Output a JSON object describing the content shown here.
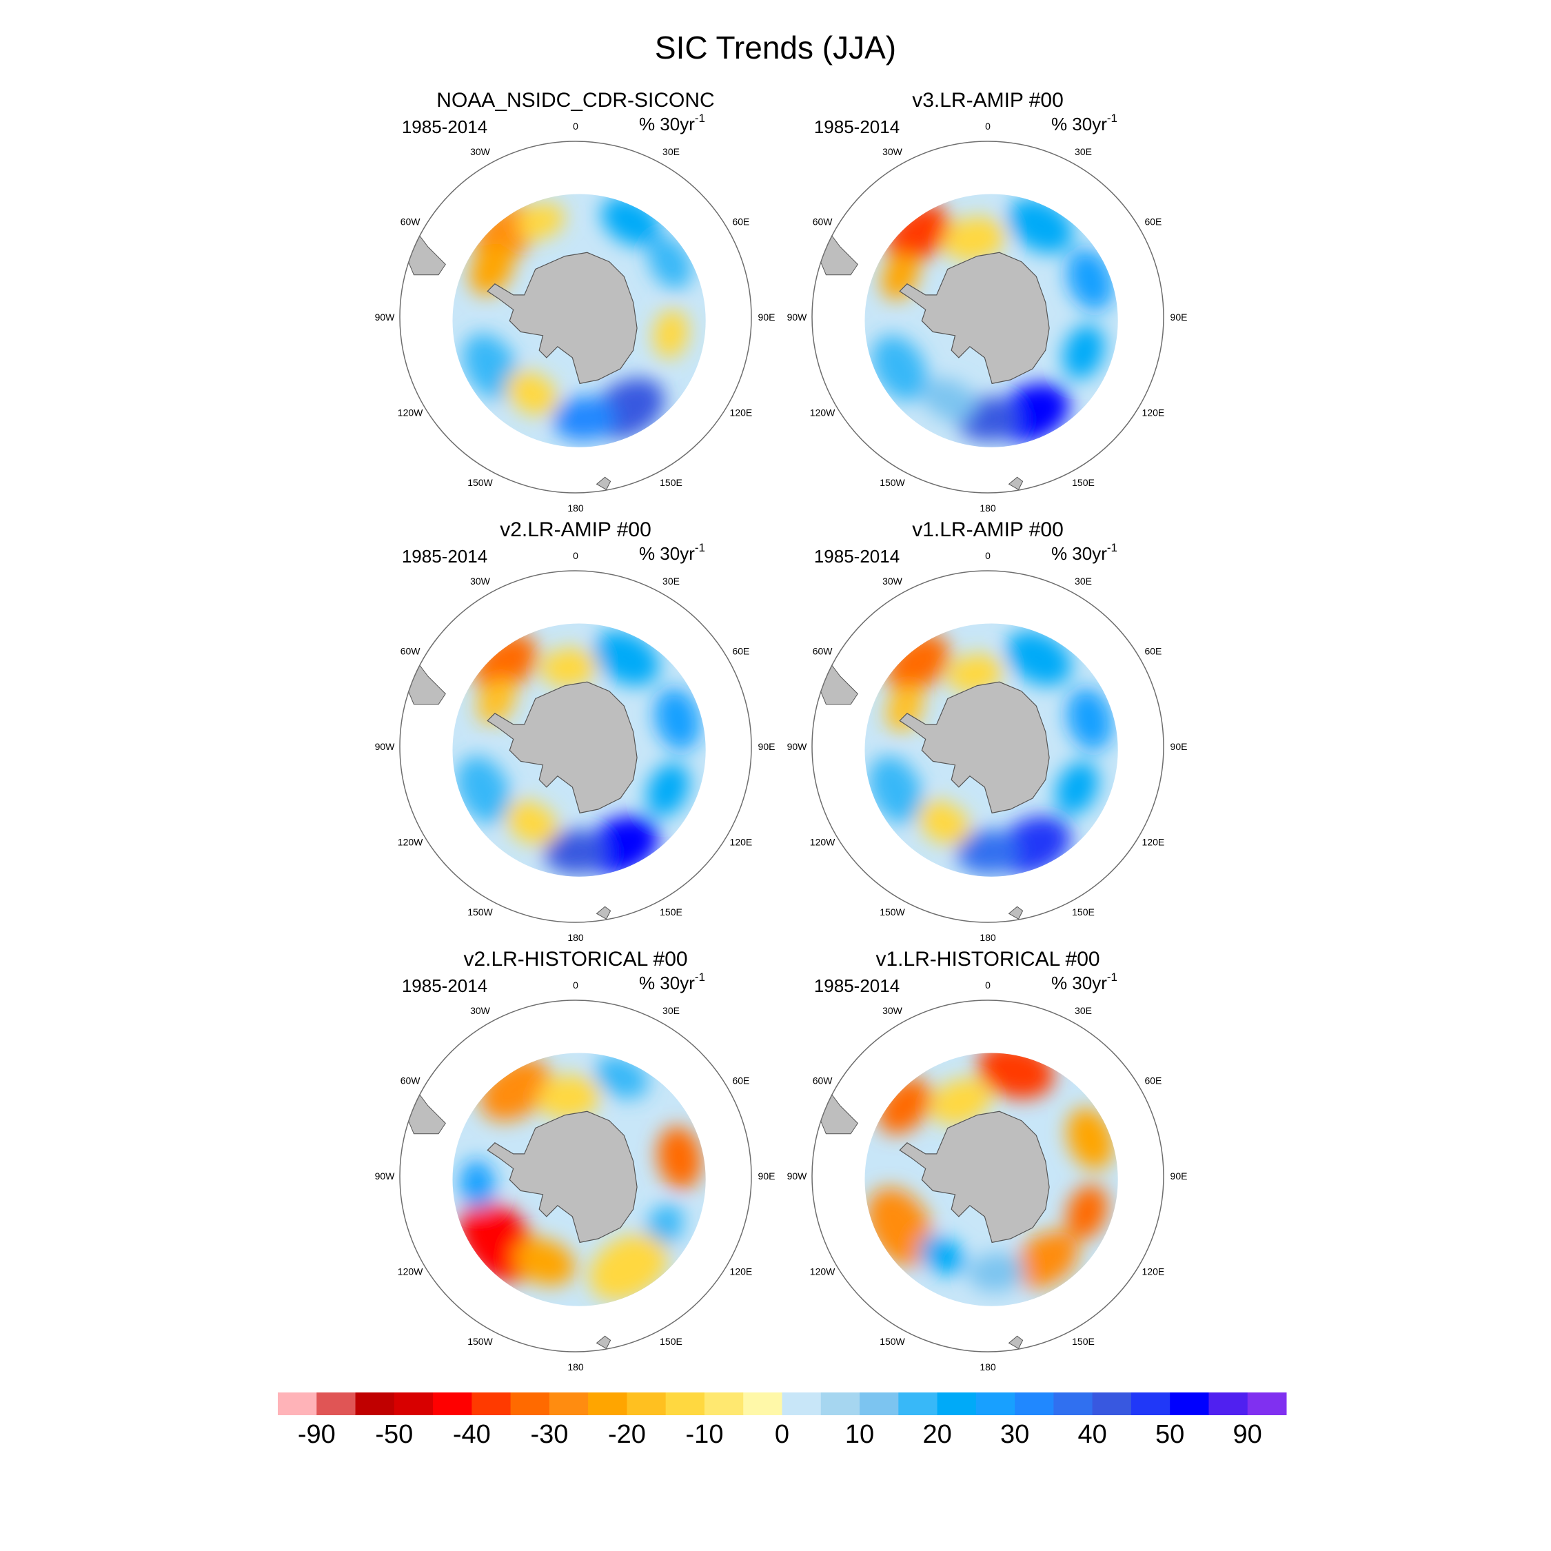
{
  "figure": {
    "title": "SIC Trends (JJA)",
    "season": "JJA"
  },
  "panels": [
    {
      "model": "NOAA_NSIDC_CDR-SICONC",
      "period": "1985-2014",
      "units_prefix": "% 30yr",
      "units_exp": "-1",
      "blobs": [
        {
          "angle": -40,
          "radius": 0.62,
          "size": 0.2,
          "level": -25
        },
        {
          "angle": -60,
          "radius": 0.55,
          "size": 0.16,
          "level": -20
        },
        {
          "angle": -20,
          "radius": 0.58,
          "size": 0.14,
          "level": -10
        },
        {
          "angle": 30,
          "radius": 0.63,
          "size": 0.18,
          "level": 25
        },
        {
          "angle": 60,
          "radius": 0.62,
          "size": 0.16,
          "level": 20
        },
        {
          "angle": 100,
          "radius": 0.55,
          "size": 0.14,
          "level": -10
        },
        {
          "angle": 150,
          "radius": 0.6,
          "size": 0.22,
          "level": 45
        },
        {
          "angle": 175,
          "radius": 0.58,
          "size": 0.18,
          "level": 35
        },
        {
          "angle": -120,
          "radius": 0.56,
          "size": 0.2,
          "level": 20
        },
        {
          "angle": -150,
          "radius": 0.5,
          "size": 0.16,
          "level": -10
        }
      ]
    },
    {
      "model": "v3.LR-AMIP  #00",
      "period": "1985-2014",
      "units_prefix": "% 30yr",
      "units_exp": "-1",
      "blobs": [
        {
          "angle": -40,
          "radius": 0.62,
          "size": 0.2,
          "level": -35
        },
        {
          "angle": -65,
          "radius": 0.55,
          "size": 0.14,
          "level": -20
        },
        {
          "angle": -10,
          "radius": 0.45,
          "size": 0.18,
          "level": -10
        },
        {
          "angle": 30,
          "radius": 0.6,
          "size": 0.2,
          "level": 25
        },
        {
          "angle": 70,
          "radius": 0.62,
          "size": 0.18,
          "level": 30
        },
        {
          "angle": 110,
          "radius": 0.58,
          "size": 0.16,
          "level": 25
        },
        {
          "angle": 155,
          "radius": 0.6,
          "size": 0.22,
          "level": 55
        },
        {
          "angle": 180,
          "radius": 0.58,
          "size": 0.18,
          "level": 45
        },
        {
          "angle": -120,
          "radius": 0.58,
          "size": 0.2,
          "level": 20
        },
        {
          "angle": -155,
          "radius": 0.52,
          "size": 0.16,
          "level": 15
        }
      ]
    },
    {
      "model": "v2.LR-AMIP  #00",
      "period": "1985-2014",
      "units_prefix": "% 30yr",
      "units_exp": "-1",
      "blobs": [
        {
          "angle": -40,
          "radius": 0.62,
          "size": 0.2,
          "level": -30
        },
        {
          "angle": -60,
          "radius": 0.52,
          "size": 0.14,
          "level": -15
        },
        {
          "angle": -5,
          "radius": 0.45,
          "size": 0.16,
          "level": -10
        },
        {
          "angle": 30,
          "radius": 0.58,
          "size": 0.2,
          "level": 25
        },
        {
          "angle": 75,
          "radius": 0.6,
          "size": 0.18,
          "level": 30
        },
        {
          "angle": 115,
          "radius": 0.58,
          "size": 0.16,
          "level": 25
        },
        {
          "angle": 155,
          "radius": 0.62,
          "size": 0.22,
          "level": 55
        },
        {
          "angle": 180,
          "radius": 0.6,
          "size": 0.18,
          "level": 45
        },
        {
          "angle": -115,
          "radius": 0.58,
          "size": 0.2,
          "level": 20
        },
        {
          "angle": -150,
          "radius": 0.5,
          "size": 0.16,
          "level": -10
        }
      ]
    },
    {
      "model": "v1.LR-AMIP  #00",
      "period": "1985-2014",
      "units_prefix": "% 30yr",
      "units_exp": "-1",
      "blobs": [
        {
          "angle": -40,
          "radius": 0.62,
          "size": 0.2,
          "level": -30
        },
        {
          "angle": -65,
          "radius": 0.52,
          "size": 0.14,
          "level": -15
        },
        {
          "angle": -10,
          "radius": 0.42,
          "size": 0.16,
          "level": -10
        },
        {
          "angle": 30,
          "radius": 0.58,
          "size": 0.2,
          "level": 25
        },
        {
          "angle": 75,
          "radius": 0.6,
          "size": 0.18,
          "level": 30
        },
        {
          "angle": 115,
          "radius": 0.56,
          "size": 0.16,
          "level": 25
        },
        {
          "angle": 155,
          "radius": 0.62,
          "size": 0.22,
          "level": 50
        },
        {
          "angle": 180,
          "radius": 0.6,
          "size": 0.18,
          "level": 40
        },
        {
          "angle": -115,
          "radius": 0.58,
          "size": 0.2,
          "level": 20
        },
        {
          "angle": -150,
          "radius": 0.5,
          "size": 0.16,
          "level": -10
        }
      ]
    },
    {
      "model": "v2.LR-HISTORICAL  #00",
      "period": "1985-2014",
      "units_prefix": "% 30yr",
      "units_exp": "-1",
      "blobs": [
        {
          "angle": -35,
          "radius": 0.6,
          "size": 0.22,
          "level": -25
        },
        {
          "angle": -5,
          "radius": 0.45,
          "size": 0.18,
          "level": -10
        },
        {
          "angle": 25,
          "radius": 0.62,
          "size": 0.16,
          "level": 20
        },
        {
          "angle": 80,
          "radius": 0.6,
          "size": 0.18,
          "level": -30
        },
        {
          "angle": 120,
          "radius": 0.58,
          "size": 0.14,
          "level": 20
        },
        {
          "angle": 150,
          "radius": 0.6,
          "size": 0.24,
          "level": -10
        },
        {
          "angle": -130,
          "radius": 0.58,
          "size": 0.26,
          "level": -40
        },
        {
          "angle": -95,
          "radius": 0.56,
          "size": 0.14,
          "level": 30
        },
        {
          "angle": -160,
          "radius": 0.52,
          "size": 0.18,
          "level": -20
        }
      ]
    },
    {
      "model": "v1.LR-HISTORICAL  #00",
      "period": "1985-2014",
      "units_prefix": "% 30yr",
      "units_exp": "-1",
      "blobs": [
        {
          "angle": 15,
          "radius": 0.62,
          "size": 0.22,
          "level": -35
        },
        {
          "angle": -50,
          "radius": 0.62,
          "size": 0.18,
          "level": -30
        },
        {
          "angle": -20,
          "radius": 0.45,
          "size": 0.18,
          "level": -10
        },
        {
          "angle": 70,
          "radius": 0.62,
          "size": 0.18,
          "level": -20
        },
        {
          "angle": 110,
          "radius": 0.6,
          "size": 0.16,
          "level": -30
        },
        {
          "angle": 145,
          "radius": 0.58,
          "size": 0.2,
          "level": -25
        },
        {
          "angle": 175,
          "radius": 0.55,
          "size": 0.16,
          "level": 15
        },
        {
          "angle": -120,
          "radius": 0.58,
          "size": 0.24,
          "level": -25
        },
        {
          "angle": -150,
          "radius": 0.52,
          "size": 0.14,
          "level": 25
        }
      ]
    }
  ],
  "longitude_labels": [
    {
      "text": "0",
      "deg": 0
    },
    {
      "text": "30E",
      "deg": 30
    },
    {
      "text": "60E",
      "deg": 60
    },
    {
      "text": "90E",
      "deg": 90
    },
    {
      "text": "120E",
      "deg": 120
    },
    {
      "text": "150E",
      "deg": 150
    },
    {
      "text": "180",
      "deg": 180
    },
    {
      "text": "150W",
      "deg": 210
    },
    {
      "text": "120W",
      "deg": 240
    },
    {
      "text": "90W",
      "deg": 270
    },
    {
      "text": "60W",
      "deg": 300
    },
    {
      "text": "30W",
      "deg": 330
    }
  ],
  "colorbar": {
    "colors": [
      "#ffb3b8",
      "#e05555",
      "#c00000",
      "#d80000",
      "#ff0000",
      "#ff3a00",
      "#ff6a00",
      "#ff8c10",
      "#ffa500",
      "#ffc020",
      "#ffd840",
      "#ffe870",
      "#fff8a8",
      "#c8e6f8",
      "#a6d6f0",
      "#7cc4f0",
      "#38b8f8",
      "#00aaf8",
      "#18a0ff",
      "#2088ff",
      "#3070f0",
      "#3858e0",
      "#2038f8",
      "#0000ff",
      "#5020f0",
      "#8030f0"
    ],
    "labels": [
      {
        "text": "-90",
        "boundary": 1
      },
      {
        "text": "-50",
        "boundary": 3
      },
      {
        "text": "-40",
        "boundary": 5
      },
      {
        "text": "-30",
        "boundary": 7
      },
      {
        "text": "-20",
        "boundary": 9
      },
      {
        "text": "-10",
        "boundary": 11
      },
      {
        "text": "0",
        "boundary": 13
      },
      {
        "text": "10",
        "boundary": 15
      },
      {
        "text": "20",
        "boundary": 17
      },
      {
        "text": "30",
        "boundary": 19
      },
      {
        "text": "40",
        "boundary": 21
      },
      {
        "text": "50",
        "boundary": 23
      },
      {
        "text": "90",
        "boundary": 25
      }
    ],
    "level_bounds": [
      -90,
      -70,
      -50,
      -45,
      -40,
      -35,
      -30,
      -25,
      -20,
      -15,
      -10,
      -5,
      0,
      5,
      10,
      15,
      20,
      25,
      30,
      35,
      40,
      45,
      50,
      70,
      90
    ]
  },
  "colors": {
    "land": "#bebebe",
    "ocean": "#ffffff",
    "outline": "#6e6e6e"
  }
}
